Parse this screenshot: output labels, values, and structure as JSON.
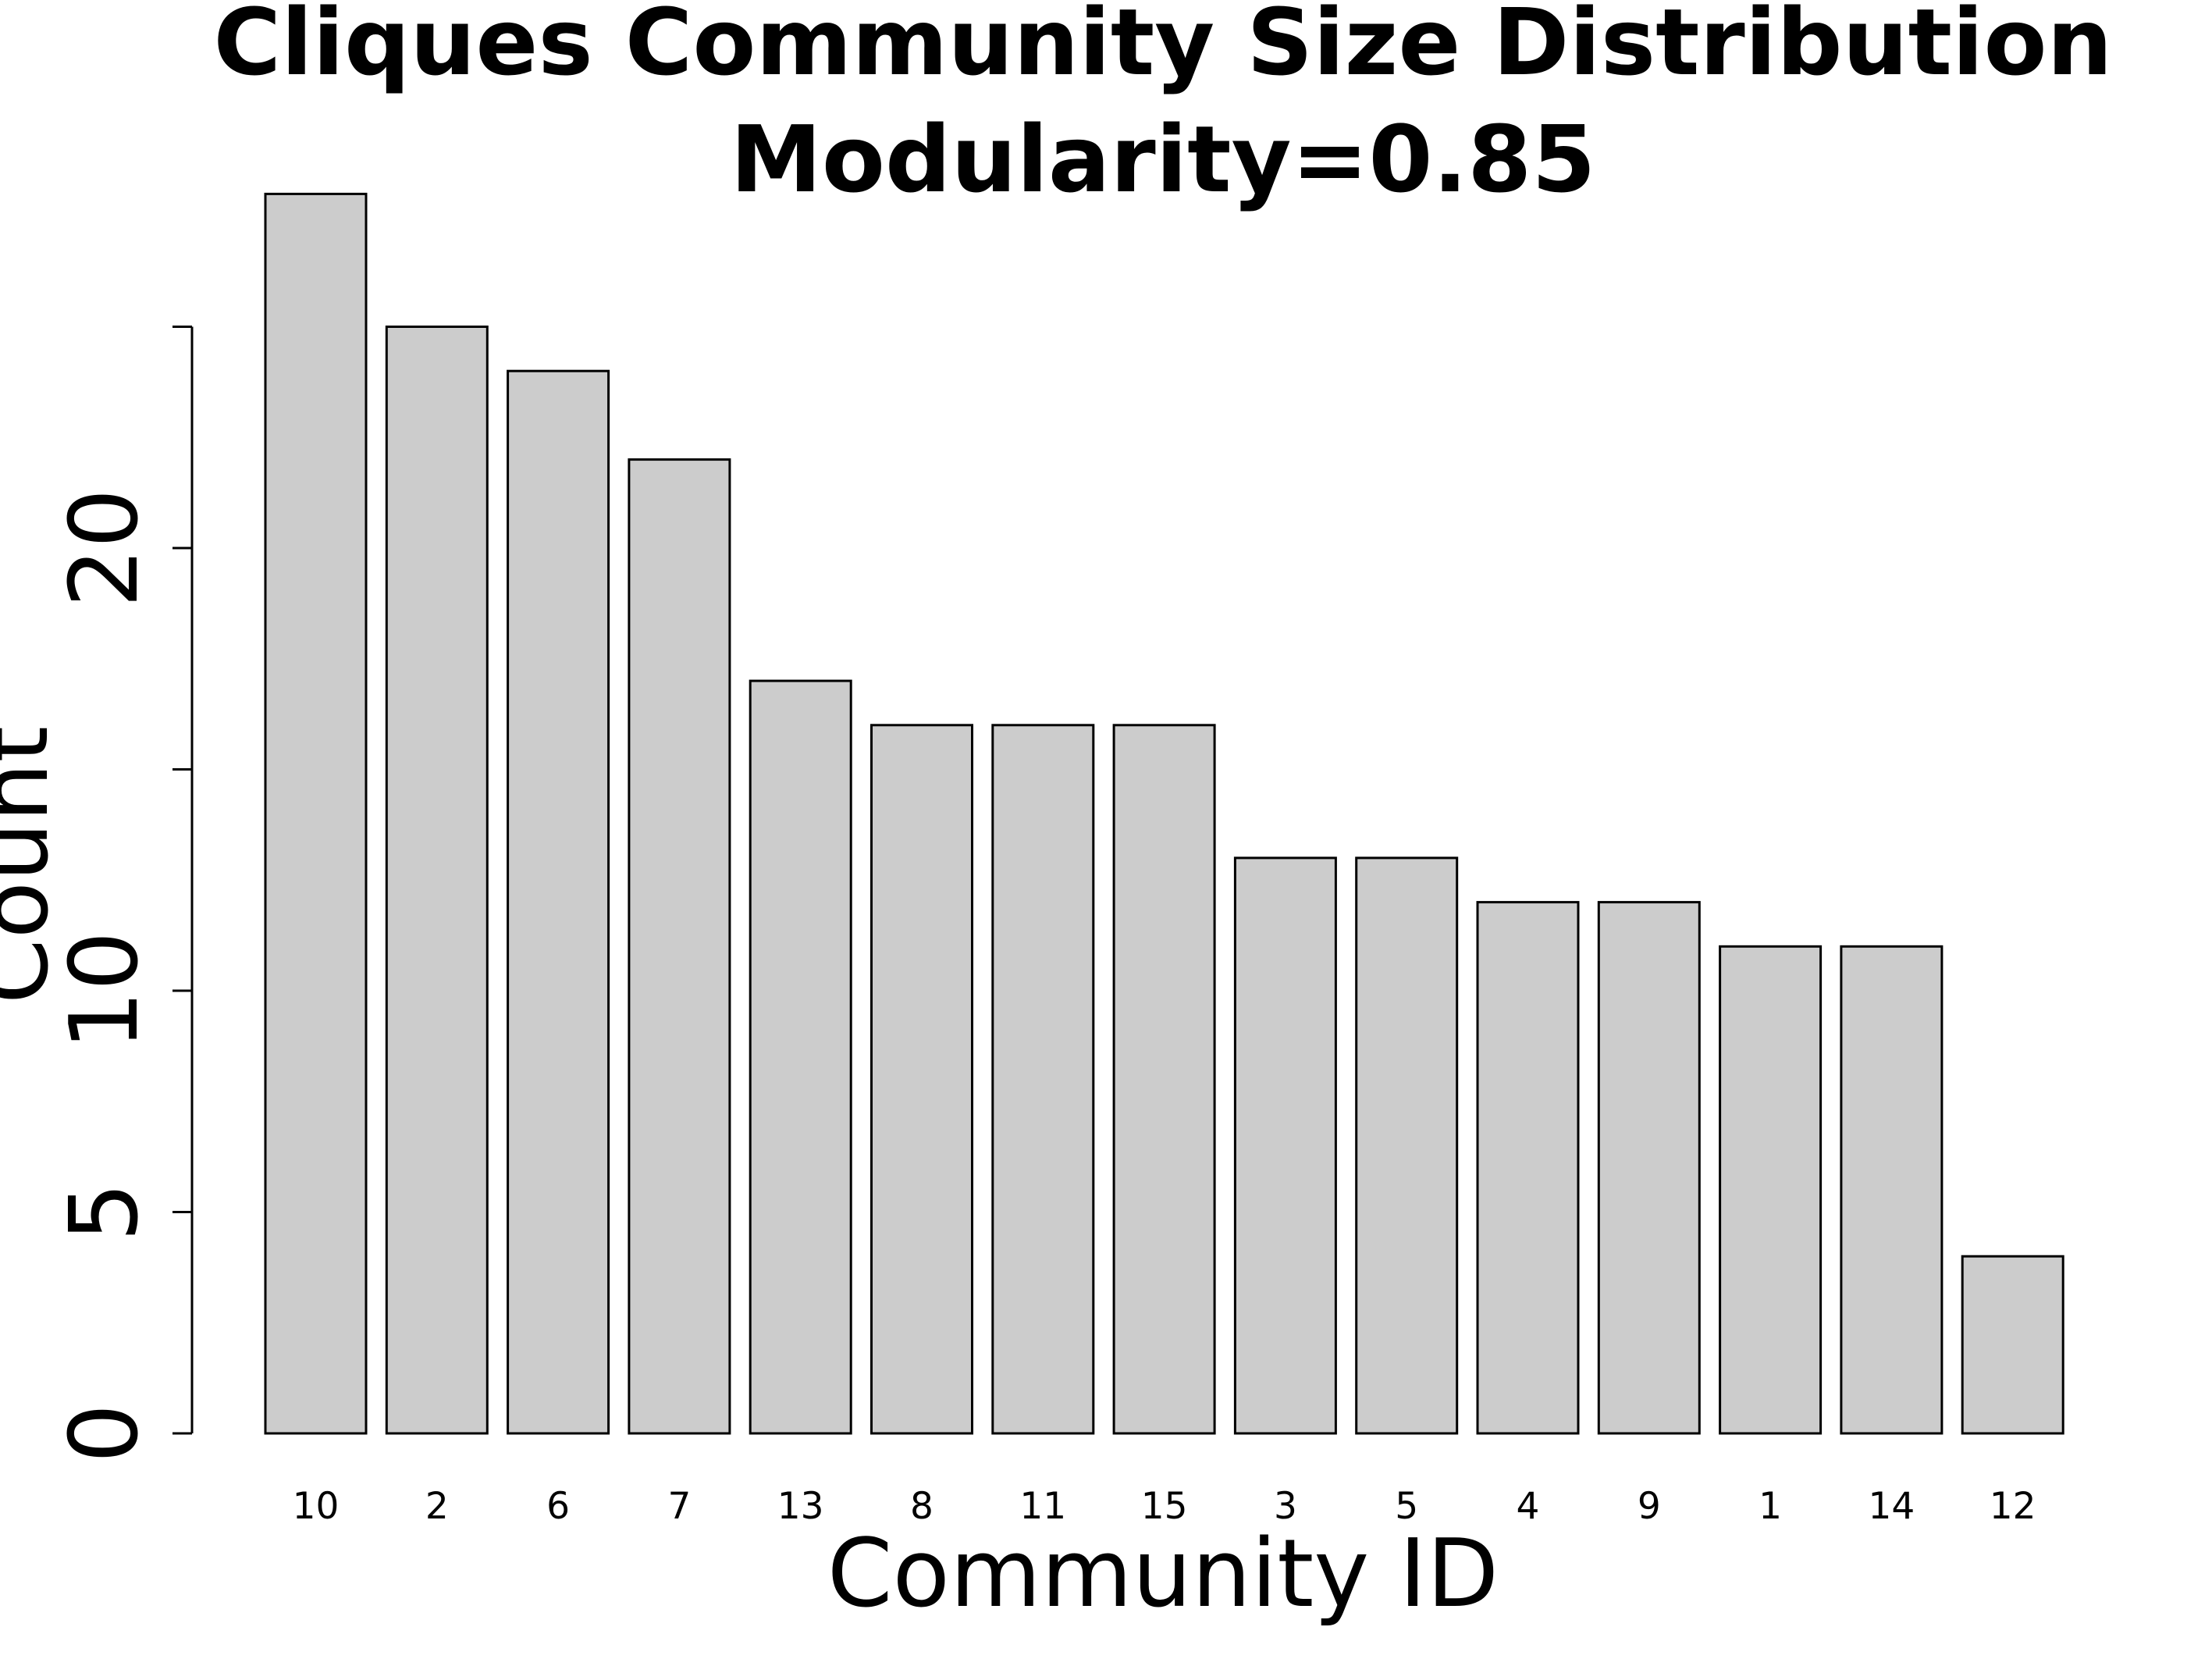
{
  "chart_data": {
    "type": "bar",
    "title": "Cliques Community Size Distribution",
    "subtitle": "Modularity=0.85",
    "xlabel": "Community ID",
    "ylabel": "Count",
    "categories": [
      "10",
      "2",
      "6",
      "7",
      "13",
      "8",
      "11",
      "15",
      "3",
      "5",
      "4",
      "9",
      "1",
      "14",
      "12"
    ],
    "values": [
      28,
      25,
      24,
      22,
      17,
      16,
      16,
      16,
      13,
      13,
      12,
      12,
      11,
      11,
      4
    ],
    "ylim": [
      0,
      28
    ],
    "yticks": [
      0,
      5,
      10,
      15,
      20,
      25
    ],
    "ytick_labels": [
      "0",
      "5",
      "10",
      "",
      "20",
      ""
    ],
    "bar_fill": "#cccccc",
    "bar_stroke": "#000000",
    "grid": false,
    "legend": "none"
  }
}
